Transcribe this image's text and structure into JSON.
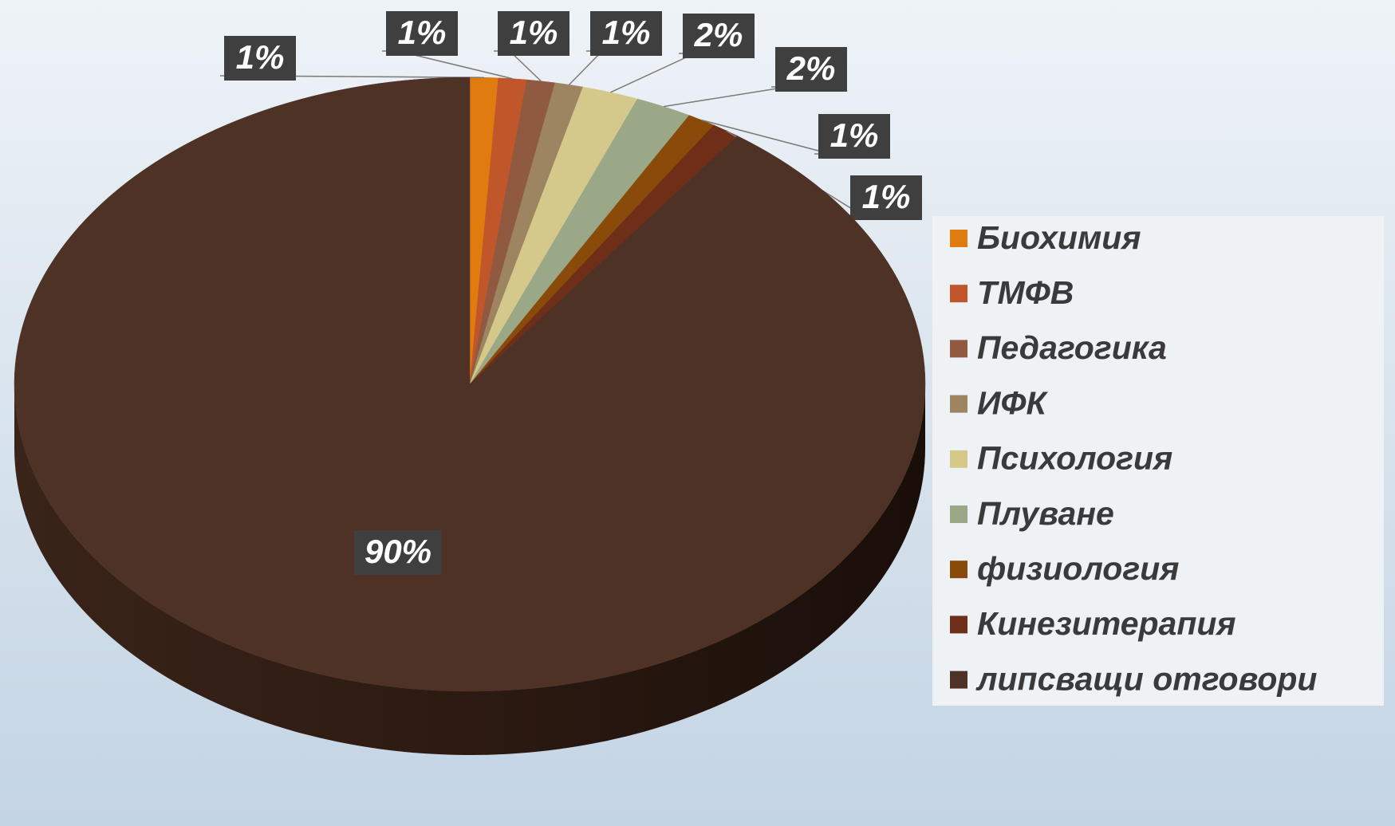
{
  "chart_data": {
    "type": "pie",
    "categories": [
      "Биохимия",
      "ТМФВ",
      "Педагогика",
      "ИФК",
      "Психология",
      "Плуване",
      "физиология",
      "Кинезитерапия",
      "липсващи отговори"
    ],
    "values": [
      1,
      1,
      1,
      1,
      2,
      2,
      1,
      1,
      90
    ],
    "value_labels": [
      "1%",
      "1%",
      "1%",
      "1%",
      "2%",
      "2%",
      "1%",
      "1%",
      "90%"
    ],
    "colors": [
      "#e07b10",
      "#c0562a",
      "#8f5a3f",
      "#9c8560",
      "#d4c98a",
      "#9aa888",
      "#8a4a0a",
      "#6e2e18",
      "#4e3226"
    ],
    "legend": "right"
  }
}
